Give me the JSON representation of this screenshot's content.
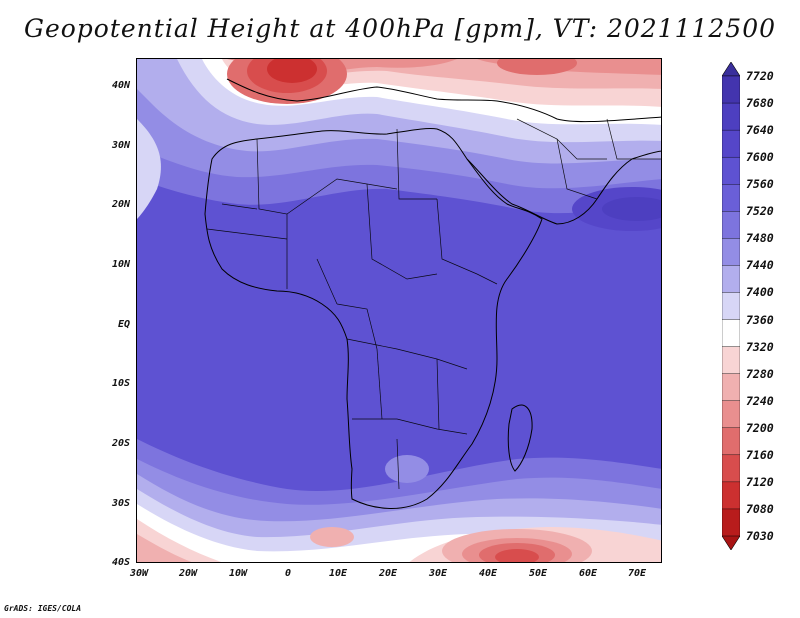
{
  "title": "Geopotential Height at 400hPa [gpm], VT: 2021112500",
  "credit": "GrADS: IGES/COLA",
  "map": {
    "lat_labels": [
      "40N",
      "30N",
      "20N",
      "10N",
      "EQ",
      "10S",
      "20S",
      "30S",
      "40S"
    ],
    "lon_labels": [
      "30W",
      "20W",
      "10W",
      "0",
      "10E",
      "20E",
      "30E",
      "40E",
      "50E",
      "60E",
      "70E"
    ],
    "extent": {
      "lon_min": -30,
      "lon_max": 75,
      "lat_min": -40,
      "lat_max": 45
    }
  },
  "colorbar": {
    "labels": [
      "7720",
      "7680",
      "7640",
      "7600",
      "7560",
      "7520",
      "7480",
      "7440",
      "7400",
      "7360",
      "7320",
      "7280",
      "7240",
      "7200",
      "7160",
      "7120",
      "7080",
      "7030"
    ],
    "colors": [
      "#3a2f9c",
      "#4334ae",
      "#4d3fc0",
      "#5546c9",
      "#5e52d2",
      "#6a5fd8",
      "#7d74de",
      "#938de5",
      "#b2aeed",
      "#d7d6f6",
      "#ffffff",
      "#f8d4d4",
      "#f0b0b0",
      "#e98f8f",
      "#e06d6d",
      "#d84d4d",
      "#cc3030",
      "#b81c1c",
      "#a81414"
    ]
  },
  "field": {
    "background": "#5e52d2"
  }
}
